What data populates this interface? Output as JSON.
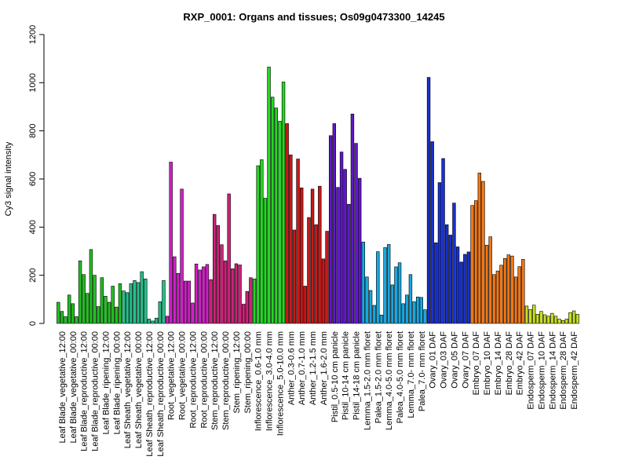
{
  "chart_data": {
    "type": "bar",
    "title": "RXP_0001: Organs and tissues; Os09g0473300_14245",
    "xlabel": "",
    "ylabel": "Cy3 signal intensity",
    "ylim": [
      0,
      1200
    ],
    "yticks": [
      0,
      200,
      400,
      600,
      800,
      1000,
      1200
    ],
    "grid": false,
    "legend": "none",
    "groups": [
      {
        "label": "Leaf Blade_vegetative_12:00",
        "color": "#22c022",
        "values": [
          88,
          50,
          28
        ]
      },
      {
        "label": "Leaf Blade_vegetative_00:00",
        "color": "#22c022",
        "values": [
          118,
          82,
          28
        ]
      },
      {
        "label": "Leaf Blade_reproductive_12:00",
        "color": "#22c022",
        "values": [
          260,
          203,
          125
        ]
      },
      {
        "label": "Leaf Blade_reproductive_00:00",
        "color": "#22c022",
        "values": [
          307,
          200,
          70
        ]
      },
      {
        "label": "Leaf Blade_ripening_12:00",
        "color": "#22c022",
        "values": [
          190,
          113,
          88
        ]
      },
      {
        "label": "Leaf Blade_ripening_00:00",
        "color": "#22c022",
        "values": [
          155,
          68,
          165
        ]
      },
      {
        "label": "Leaf Sheath_vegetative_12:00",
        "color": "#22c08a",
        "values": [
          135,
          128,
          165
        ]
      },
      {
        "label": "Leaf Sheath_vegetative_00:00",
        "color": "#22c08a",
        "values": [
          178,
          170,
          215
        ]
      },
      {
        "label": "Leaf Sheath_reproductive_12:00",
        "color": "#22c08a",
        "values": [
          185,
          18,
          10
        ]
      },
      {
        "label": "Leaf Sheath_reproductive_00:00",
        "color": "#22c08a",
        "values": [
          22,
          90,
          178
        ]
      },
      {
        "label": "Root_vegetative_12:00",
        "color": "#d020c8",
        "values": [
          30,
          670,
          277
        ]
      },
      {
        "label": "Root_vegetative_00:00",
        "color": "#d020c8",
        "values": [
          208,
          558,
          176
        ]
      },
      {
        "label": "Root_reproductive_12:00",
        "color": "#d020c8",
        "values": [
          176,
          85,
          247
        ]
      },
      {
        "label": "Root_reproductive_00:00",
        "color": "#d020c8",
        "values": [
          222,
          235,
          245
        ]
      },
      {
        "label": "Stem_reproductive_12:00",
        "color": "#d0207a",
        "values": [
          182,
          453,
          407
        ]
      },
      {
        "label": "Stem_reproductive_00:00",
        "color": "#d0207a",
        "values": [
          327,
          260,
          538
        ]
      },
      {
        "label": "Stem_ripening_12:00",
        "color": "#d0207a",
        "values": [
          227,
          248,
          243
        ]
      },
      {
        "label": "Stem_ripening_00:00",
        "color": "#d0207a",
        "values": [
          80,
          133,
          190
        ]
      },
      {
        "label": "Inflorescence_0.6-1.0 mm",
        "color": "#22d822",
        "values": [
          185,
          655,
          680
        ]
      },
      {
        "label": "Inflorescence_3.0-4.0 mm",
        "color": "#22d822",
        "values": [
          520,
          1065,
          940
        ]
      },
      {
        "label": "Inflorescence_5.0-10.0 mm",
        "color": "#22d822",
        "values": [
          895,
          840,
          1003
        ]
      },
      {
        "label": "Anther_0.3-0.6 mm",
        "color": "#c81818",
        "values": [
          830,
          700,
          388
        ]
      },
      {
        "label": "Anther_0.7-1.0 mm",
        "color": "#c81818",
        "values": [
          683,
          563,
          155
        ]
      },
      {
        "label": "Anther_1.2-1.5 mm",
        "color": "#c81818",
        "values": [
          440,
          558,
          410
        ]
      },
      {
        "label": "Anther_1.6-2.0 mm",
        "color": "#c81818",
        "values": [
          570,
          268,
          383
        ]
      },
      {
        "label": "Pistil_0.5-10 cm panicle",
        "color": "#6018c8",
        "values": [
          780,
          830,
          565
        ]
      },
      {
        "label": "Pistil_10-14 cm panicle",
        "color": "#6018c8",
        "values": [
          712,
          640,
          495
        ]
      },
      {
        "label": "Pistil_14-18 cm panicle",
        "color": "#6018c8",
        "values": [
          870,
          748,
          603
        ]
      },
      {
        "label": "Lemma_1.5-2.0 mm floret",
        "color": "#18a8e0",
        "values": [
          338,
          193,
          137
        ]
      },
      {
        "label": "Palea_1.5-2.0 mm floret",
        "color": "#18a8e0",
        "values": [
          75,
          298,
          35
        ]
      },
      {
        "label": "Lemma_4.0-5.0 mm floret",
        "color": "#18a8e0",
        "values": [
          315,
          328,
          160
        ]
      },
      {
        "label": "Palea_4.0-5.0 mm floret",
        "color": "#18a8e0",
        "values": [
          235,
          252,
          82
        ]
      },
      {
        "label": "Lemma_7.0- mm floret",
        "color": "#18a8e0",
        "values": [
          118,
          203,
          90
        ]
      },
      {
        "label": "Palea_7.0- mm floret",
        "color": "#18a8e0",
        "values": [
          110,
          108,
          57
        ]
      },
      {
        "label": "Ovary_01 DAF",
        "color": "#1830d0",
        "values": [
          1022,
          755,
          335
        ]
      },
      {
        "label": "Ovary_03 DAF",
        "color": "#1830d0",
        "values": [
          585,
          685,
          410
        ]
      },
      {
        "label": "Ovary_05 DAF",
        "color": "#1830d0",
        "values": [
          367,
          500,
          318
        ]
      },
      {
        "label": "Ovary_07 DAF",
        "color": "#1830d0",
        "values": [
          255,
          287,
          297
        ]
      },
      {
        "label": "Embryo_07 DAF",
        "color": "#f07818",
        "values": [
          490,
          510,
          625
        ]
      },
      {
        "label": "Embryo_10 DAF",
        "color": "#f07818",
        "values": [
          590,
          325,
          360
        ]
      },
      {
        "label": "Embryo_14 DAF",
        "color": "#f07818",
        "values": [
          203,
          218,
          242
        ]
      },
      {
        "label": "Embryo_28 DAF",
        "color": "#f07818",
        "values": [
          270,
          285,
          280
        ]
      },
      {
        "label": "Embryo_42 DAF",
        "color": "#f07818",
        "values": [
          193,
          236,
          266
        ]
      },
      {
        "label": "Endosperm_07 DAF",
        "color": "#c8e020",
        "values": [
          72,
          58,
          76
        ]
      },
      {
        "label": "Endosperm_10 DAF",
        "color": "#c8e020",
        "values": [
          38,
          50,
          36
        ]
      },
      {
        "label": "Endosperm_14 DAF",
        "color": "#c8e020",
        "values": [
          30,
          42,
          30
        ]
      },
      {
        "label": "Endosperm_28 DAF",
        "color": "#c8e020",
        "values": [
          18,
          12,
          18
        ]
      },
      {
        "label": "Endosperm_42 DAF",
        "color": "#c8e020",
        "values": [
          45,
          52,
          38
        ]
      }
    ]
  }
}
